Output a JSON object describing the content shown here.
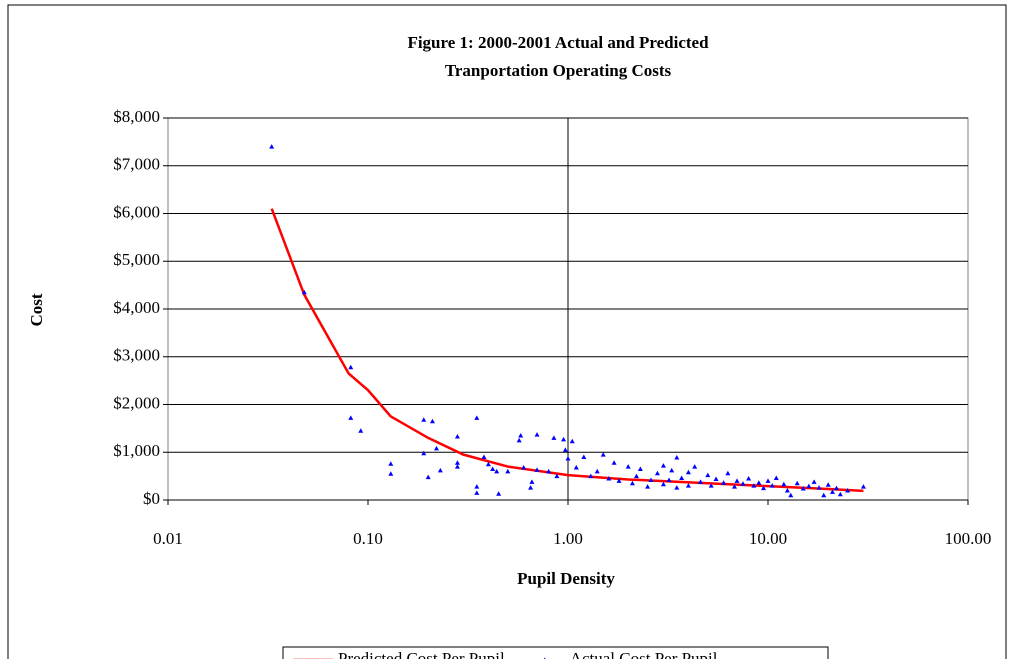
{
  "chart_data": {
    "type": "scatter",
    "title": [
      "Figure 1: 2000-2001 Actual and Predicted",
      "Tranportation Operating Costs"
    ],
    "xlabel": "Pupil Density",
    "ylabel": "Cost",
    "xscale": "log",
    "xlim": [
      0.01,
      100
    ],
    "xticks": [
      {
        "value": 0.01,
        "label": "0.01"
      },
      {
        "value": 0.1,
        "label": "0.10"
      },
      {
        "value": 1,
        "label": "1.00"
      },
      {
        "value": 10,
        "label": "10.00"
      },
      {
        "value": 100,
        "label": "100.00"
      }
    ],
    "ylim": [
      0,
      8000
    ],
    "yticks": [
      {
        "value": 0,
        "label": "$0"
      },
      {
        "value": 1000,
        "label": "$1,000"
      },
      {
        "value": 2000,
        "label": "$2,000"
      },
      {
        "value": 3000,
        "label": "$3,000"
      },
      {
        "value": 4000,
        "label": "$4,000"
      },
      {
        "value": 5000,
        "label": "$5,000"
      },
      {
        "value": 6000,
        "label": "$6,000"
      },
      {
        "value": 7000,
        "label": "$7,000"
      },
      {
        "value": 8000,
        "label": "$8,000"
      }
    ],
    "grid": true,
    "legend": "bottom",
    "series": [
      {
        "name": "Predicted Cost Per Pupil",
        "type": "line",
        "color": "#ff0000",
        "x": [
          0.033,
          0.048,
          0.08,
          0.1,
          0.13,
          0.2,
          0.3,
          0.5,
          1.0,
          2,
          5,
          10,
          20,
          30
        ],
        "y": [
          6100,
          4300,
          2650,
          2300,
          1750,
          1300,
          950,
          700,
          520,
          430,
          350,
          290,
          230,
          190
        ]
      },
      {
        "name": "Actual Cost Per Pupil",
        "type": "scatter",
        "color": "#0000ff",
        "x": [
          0.033,
          0.048,
          0.082,
          0.082,
          0.092,
          0.13,
          0.13,
          0.19,
          0.19,
          0.21,
          0.2,
          0.22,
          0.23,
          0.28,
          0.28,
          0.28,
          0.35,
          0.35,
          0.35,
          0.38,
          0.4,
          0.42,
          0.44,
          0.45,
          0.5,
          0.58,
          0.57,
          0.6,
          0.65,
          0.66,
          0.7,
          0.7,
          0.8,
          0.85,
          0.88,
          0.95,
          0.97,
          1.0,
          1.05,
          1.1,
          1.2,
          1.3,
          1.4,
          1.5,
          1.6,
          1.7,
          1.8,
          2.0,
          2.1,
          2.2,
          2.3,
          2.5,
          2.6,
          2.8,
          3.0,
          3.0,
          3.2,
          3.3,
          3.5,
          3.5,
          3.7,
          4.0,
          4.0,
          4.3,
          4.6,
          5.0,
          5.2,
          5.5,
          6.0,
          6.3,
          6.8,
          7.0,
          7.5,
          8.0,
          8.5,
          9,
          9.5,
          10,
          10.5,
          11,
          12,
          12.5,
          13,
          14,
          15,
          16,
          17,
          18,
          19,
          20,
          21,
          22,
          23,
          25,
          30
        ],
        "y": [
          7400,
          4350,
          2780,
          1720,
          1450,
          760,
          550,
          1680,
          980,
          1650,
          480,
          1080,
          620,
          1330,
          780,
          700,
          1720,
          280,
          150,
          900,
          750,
          650,
          600,
          130,
          600,
          1350,
          1250,
          680,
          260,
          380,
          1370,
          630,
          600,
          1300,
          500,
          1270,
          1050,
          870,
          1230,
          680,
          900,
          500,
          600,
          950,
          450,
          780,
          400,
          700,
          350,
          500,
          650,
          280,
          420,
          560,
          720,
          330,
          420,
          620,
          890,
          260,
          460,
          300,
          580,
          700,
          380,
          520,
          300,
          440,
          360,
          560,
          280,
          400,
          340,
          450,
          300,
          360,
          250,
          400,
          300,
          460,
          330,
          200,
          100,
          350,
          240,
          290,
          380,
          260,
          100,
          320,
          170,
          250,
          120,
          200,
          280
        ]
      }
    ]
  }
}
